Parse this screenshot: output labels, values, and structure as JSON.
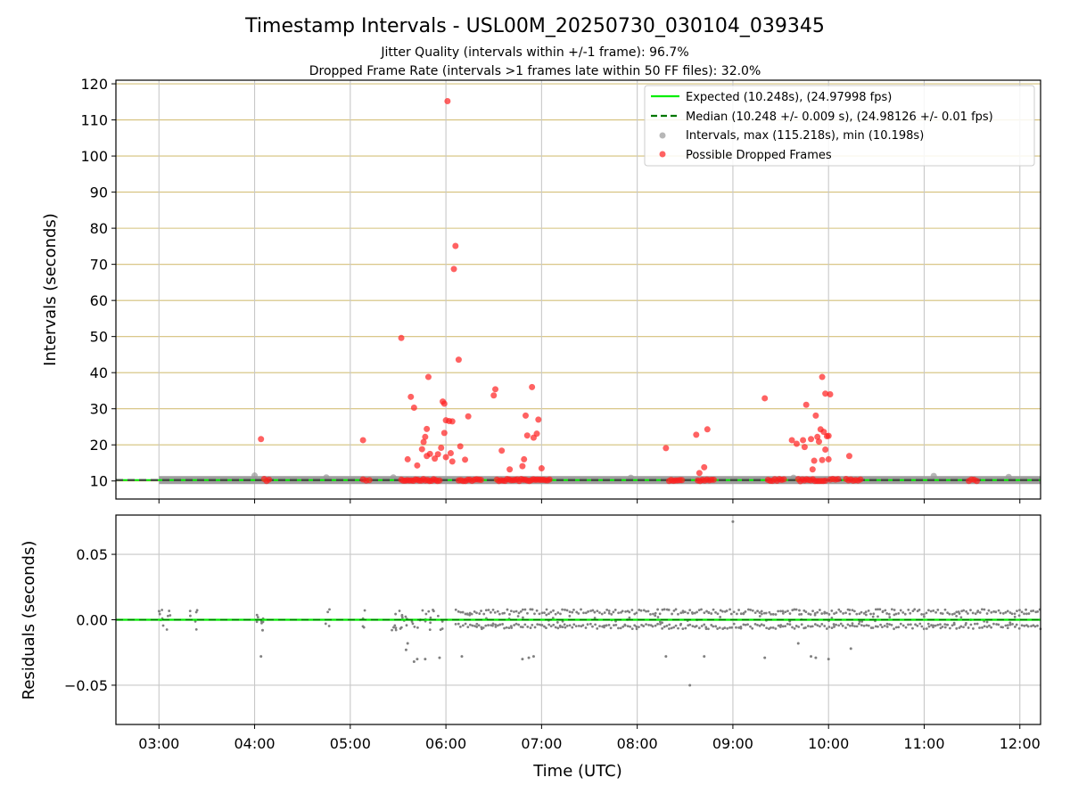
{
  "title": "Timestamp Intervals - USL00M_20250730_030104_039345",
  "subtitle_lines": [
    "Jitter Quality (intervals within +/-1 frame): 96.7%",
    "Dropped Frame Rate (intervals >1 frames late within 50 FF files): 32.0%"
  ],
  "colors": {
    "expected": "#00ee00",
    "median": "#007700",
    "intervals": "#999999",
    "dropped": "#ff2020",
    "hgrid": "#d4c07a",
    "vgrid": "#c8c8c8",
    "residuals": "#808080"
  },
  "legend": {
    "position": "upper right",
    "entries": [
      "Expected (10.248s), (24.97998 fps)",
      "Median (10.248 +/- 0.009 s), (24.98126 +/- 0.01 fps)",
      "Intervals, max (115.218s), min (10.198s)",
      "Possible Dropped Frames"
    ]
  },
  "chart_data": [
    {
      "type": "scatter",
      "panel": "top",
      "ylabel": "Intervals (seconds)",
      "xlim": [
        "02:33",
        "12:13"
      ],
      "ylim": [
        5,
        121
      ],
      "yticks": [
        10,
        20,
        30,
        40,
        50,
        60,
        70,
        80,
        90,
        100,
        110,
        120
      ],
      "grid": true,
      "expected_interval": 10.248,
      "median_interval": 10.248,
      "baseline_interval_span": [
        "03:00",
        "12:13"
      ],
      "normal_interval_points": [
        [
          "04:00",
          11.5
        ],
        [
          "04:45",
          11.0
        ],
        [
          "05:27",
          11.0
        ],
        [
          "07:56",
          10.9
        ],
        [
          "09:38",
          10.9
        ],
        [
          "11:06",
          11.4
        ],
        [
          "11:53",
          11.1
        ]
      ],
      "dropped_frame_points": [
        [
          "04:04",
          21.6
        ],
        [
          "05:08",
          21.3
        ],
        [
          "05:32",
          49.6
        ],
        [
          "05:36",
          16.0
        ],
        [
          "05:38",
          33.3
        ],
        [
          "05:40",
          30.3
        ],
        [
          "05:42",
          14.3
        ],
        [
          "05:45",
          18.8
        ],
        [
          "05:46",
          20.8
        ],
        [
          "05:47",
          22.2
        ],
        [
          "05:48",
          24.4
        ],
        [
          "05:48",
          16.9
        ],
        [
          "05:49",
          38.8
        ],
        [
          "05:50",
          17.5
        ],
        [
          "05:53",
          16.2
        ],
        [
          "05:55",
          17.4
        ],
        [
          "05:57",
          19.2
        ],
        [
          "05:58",
          32.0
        ],
        [
          "05:59",
          31.4
        ],
        [
          "05:59",
          23.3
        ],
        [
          "06:00",
          26.8
        ],
        [
          "06:00",
          16.6
        ],
        [
          "06:01",
          115.2
        ],
        [
          "06:02",
          26.6
        ],
        [
          "06:03",
          17.7
        ],
        [
          "06:04",
          26.5
        ],
        [
          "06:04",
          15.4
        ],
        [
          "06:05",
          68.7
        ],
        [
          "06:06",
          75.1
        ],
        [
          "06:08",
          43.6
        ],
        [
          "06:09",
          19.6
        ],
        [
          "06:12",
          15.9
        ],
        [
          "06:14",
          27.9
        ],
        [
          "06:30",
          33.7
        ],
        [
          "06:31",
          35.4
        ],
        [
          "06:35",
          18.4
        ],
        [
          "06:40",
          13.2
        ],
        [
          "06:48",
          14.1
        ],
        [
          "06:49",
          16.0
        ],
        [
          "06:50",
          28.1
        ],
        [
          "06:51",
          22.6
        ],
        [
          "06:54",
          36.0
        ],
        [
          "06:55",
          22.0
        ],
        [
          "06:57",
          23.1
        ],
        [
          "06:58",
          27.0
        ],
        [
          "07:00",
          13.5
        ],
        [
          "08:18",
          19.1
        ],
        [
          "08:37",
          22.8
        ],
        [
          "08:39",
          12.2
        ],
        [
          "08:42",
          13.8
        ],
        [
          "08:44",
          24.3
        ],
        [
          "09:20",
          32.9
        ],
        [
          "09:37",
          21.3
        ],
        [
          "09:40",
          20.3
        ],
        [
          "09:44",
          21.3
        ],
        [
          "09:45",
          19.4
        ],
        [
          "09:46",
          31.1
        ],
        [
          "09:49",
          21.6
        ],
        [
          "09:50",
          13.2
        ],
        [
          "09:51",
          15.6
        ],
        [
          "09:52",
          28.1
        ],
        [
          "09:53",
          22.2
        ],
        [
          "09:54",
          20.9
        ],
        [
          "09:55",
          24.3
        ],
        [
          "09:56",
          38.8
        ],
        [
          "09:56",
          15.8
        ],
        [
          "09:57",
          23.6
        ],
        [
          "09:58",
          34.2
        ],
        [
          "09:58",
          18.7
        ],
        [
          "09:59",
          22.4
        ],
        [
          "10:00",
          22.5
        ],
        [
          "10:00",
          16.0
        ],
        [
          "10:01",
          34.0
        ],
        [
          "10:13",
          16.9
        ]
      ],
      "dropped_frame_clusters_near_baseline": [
        [
          "04:06",
          "04:09"
        ],
        [
          "05:08",
          "05:12"
        ],
        [
          "05:32",
          "05:56"
        ],
        [
          "06:08",
          "06:22"
        ],
        [
          "06:32",
          "07:05"
        ],
        [
          "08:20",
          "08:28"
        ],
        [
          "08:38",
          "08:48"
        ],
        [
          "09:22",
          "09:32"
        ],
        [
          "09:41",
          "09:58"
        ],
        [
          "10:01",
          "10:06"
        ],
        [
          "10:11",
          "10:20"
        ],
        [
          "11:28",
          "11:33"
        ]
      ]
    },
    {
      "type": "scatter",
      "panel": "bottom",
      "xlabel": "Time (UTC)",
      "ylabel": "Residuals (seconds)",
      "xlim": [
        "02:33",
        "12:13"
      ],
      "ylim": [
        -0.08,
        0.08
      ],
      "yticks": [
        -0.05,
        0.0,
        0.05
      ],
      "ytick_labels": [
        "−0.05",
        "0.00",
        "0.05"
      ],
      "grid": true,
      "xticks": [
        "03:00",
        "04:00",
        "05:00",
        "06:00",
        "07:00",
        "08:00",
        "09:00",
        "10:00",
        "11:00",
        "12:00"
      ],
      "dense_band": {
        "span": [
          "06:06",
          "12:13"
        ],
        "upper": 0.008,
        "lower": -0.007
      },
      "outliers": [
        [
          "09:00",
          0.075
        ],
        [
          "08:33",
          -0.05
        ],
        [
          "04:04",
          -0.028
        ],
        [
          "05:35",
          -0.023
        ],
        [
          "05:40",
          -0.032
        ],
        [
          "05:47",
          -0.03
        ],
        [
          "05:56",
          -0.029
        ],
        [
          "06:10",
          -0.028
        ],
        [
          "06:48",
          -0.03
        ],
        [
          "06:52",
          -0.029
        ],
        [
          "06:55",
          -0.028
        ],
        [
          "08:18",
          -0.028
        ],
        [
          "08:42",
          -0.028
        ],
        [
          "09:20",
          -0.029
        ],
        [
          "09:41",
          -0.018
        ],
        [
          "09:49",
          -0.028
        ],
        [
          "09:52",
          -0.029
        ],
        [
          "10:00",
          -0.03
        ],
        [
          "10:14",
          -0.022
        ],
        [
          "05:42",
          -0.03
        ],
        [
          "05:36",
          -0.018
        ],
        [
          "04:05",
          -0.008
        ]
      ],
      "sparse_clusters": [
        [
          "03:00",
          "03:10"
        ],
        [
          "03:19",
          "03:24"
        ],
        [
          "04:00",
          "04:06"
        ],
        [
          "04:44",
          "04:47"
        ],
        [
          "05:06",
          "05:10"
        ],
        [
          "05:26",
          "05:58"
        ]
      ]
    }
  ]
}
